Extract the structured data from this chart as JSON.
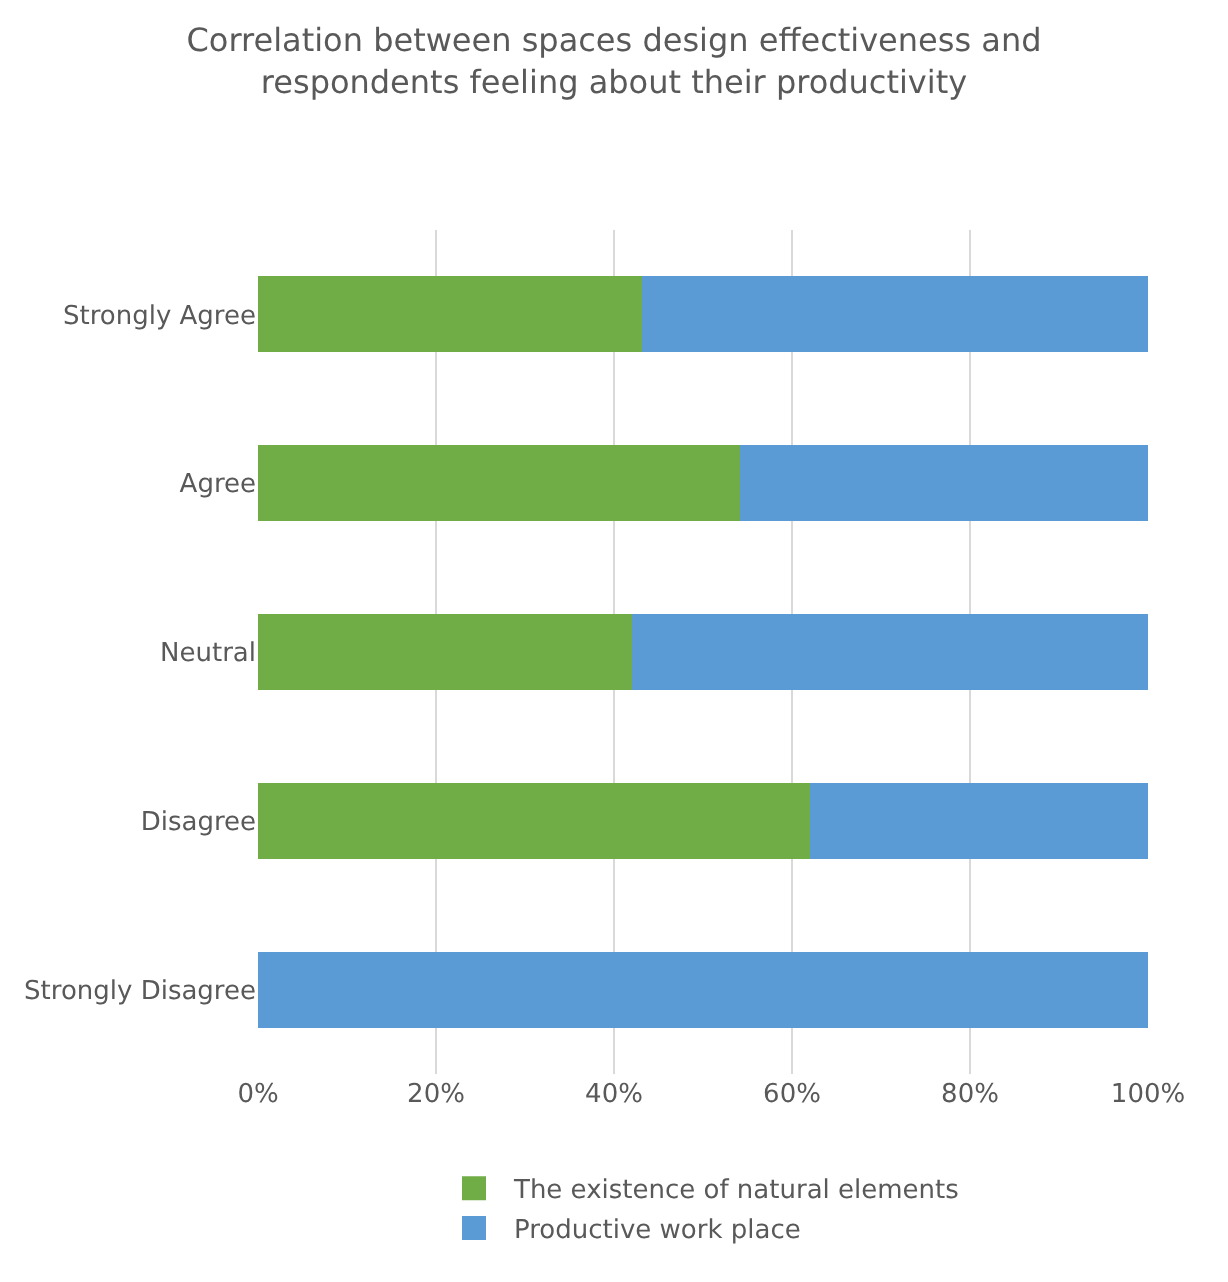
{
  "chart_data": {
    "type": "bar",
    "orientation": "horizontal",
    "stacked": true,
    "title": "Correlation between spaces design effectiveness and respondents feeling about their productivity",
    "categories": [
      "Strongly Agree",
      "Agree",
      "Neutral",
      "Disagree",
      "Strongly Disagree"
    ],
    "series": [
      {
        "name": "The existence of natural elements",
        "color": "#70ad47",
        "values": [
          43,
          54,
          42,
          62,
          0
        ]
      },
      {
        "name": "Productive work place",
        "color": "#5b9bd5",
        "values": [
          57,
          46,
          58,
          38,
          100
        ]
      }
    ],
    "xlim": [
      0,
      100
    ],
    "xticks": [
      {
        "value": 0,
        "label": "0%"
      },
      {
        "value": 20,
        "label": "20%"
      },
      {
        "value": 40,
        "label": "40%"
      },
      {
        "value": 60,
        "label": "60%"
      },
      {
        "value": 80,
        "label": "80%"
      },
      {
        "value": 100,
        "label": "100%"
      }
    ],
    "grid": "x",
    "legend": "bottom"
  }
}
